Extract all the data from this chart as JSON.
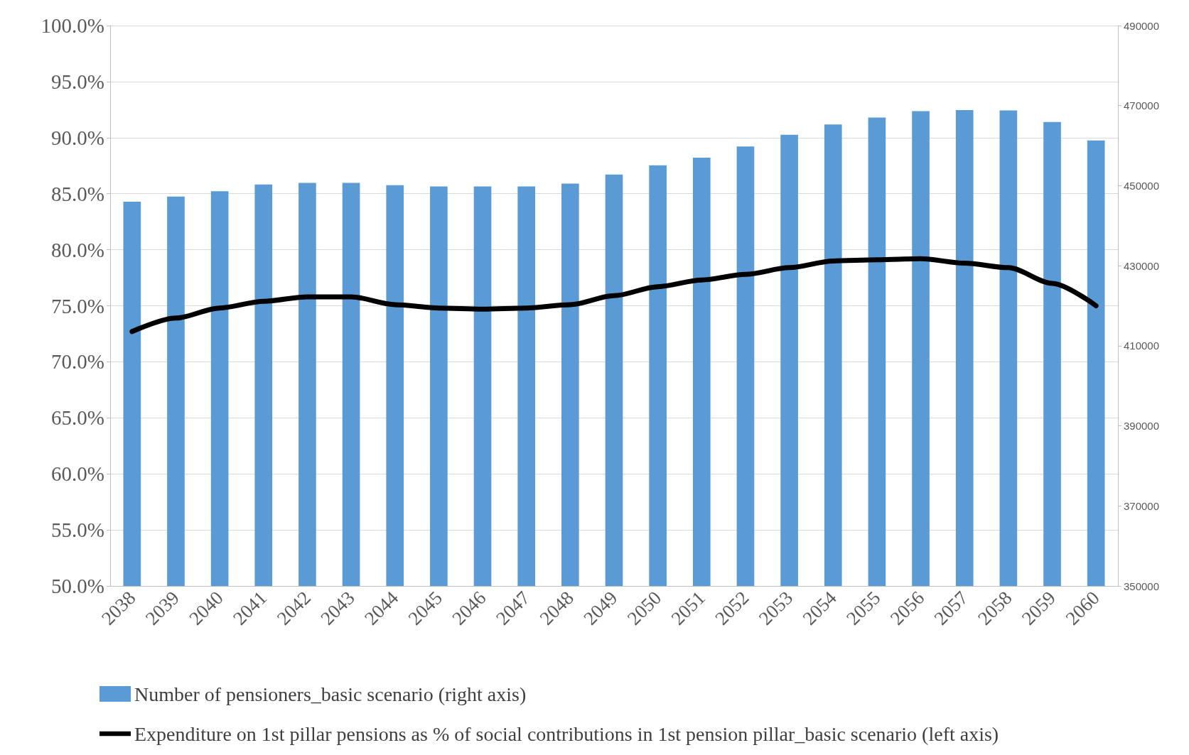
{
  "chart_data": {
    "type": "bar",
    "categories": [
      "2038",
      "2039",
      "2040",
      "2041",
      "2042",
      "2043",
      "2044",
      "2045",
      "2046",
      "2047",
      "2048",
      "2049",
      "2050",
      "2051",
      "2052",
      "2053",
      "2054",
      "2055",
      "2056",
      "2057",
      "2058",
      "2059",
      "2060"
    ],
    "series": [
      {
        "name": "Number of pensioners_basic scenario (right axis)",
        "axis": "y2",
        "color": "#5b9bd5",
        "values": [
          446000,
          447300,
          448600,
          450300,
          450700,
          450700,
          450100,
          449800,
          449800,
          449800,
          450500,
          452800,
          455100,
          457000,
          459800,
          462700,
          465300,
          467000,
          468600,
          468900,
          468800,
          465900,
          461300
        ]
      },
      {
        "name": "Expenditure on 1st pillar pensions as % of social contributions in 1st pension pillar_basic scenario (left axis)",
        "type": "line",
        "axis": "y",
        "color": "#000000",
        "marker": "none",
        "line_style": "solid",
        "values": [
          72.7,
          73.9,
          74.8,
          75.4,
          75.8,
          75.8,
          75.1,
          74.8,
          74.7,
          74.8,
          75.1,
          75.9,
          76.7,
          77.3,
          77.8,
          78.4,
          79.0,
          79.1,
          79.2,
          78.8,
          78.4,
          77.0,
          75.0
        ]
      }
    ],
    "ylim": [
      50,
      100
    ],
    "yticks": [
      {
        "value": 50,
        "label": "50.0%"
      },
      {
        "value": 55,
        "label": "55.0%"
      },
      {
        "value": 60,
        "label": "60.0%"
      },
      {
        "value": 65,
        "label": "65.0%"
      },
      {
        "value": 70,
        "label": "70.0%"
      },
      {
        "value": 75,
        "label": "75.0%"
      },
      {
        "value": 80,
        "label": "80.0%"
      },
      {
        "value": 85,
        "label": "85.0%"
      },
      {
        "value": 90,
        "label": "90.0%"
      },
      {
        "value": 95,
        "label": "95.0%"
      },
      {
        "value": 100,
        "label": "100.0%"
      }
    ],
    "y2lim": [
      350000,
      490000
    ],
    "y2ticks": [
      350000,
      370000,
      390000,
      410000,
      430000,
      450000,
      470000,
      490000
    ],
    "grid": "y",
    "legend": "bottom"
  }
}
